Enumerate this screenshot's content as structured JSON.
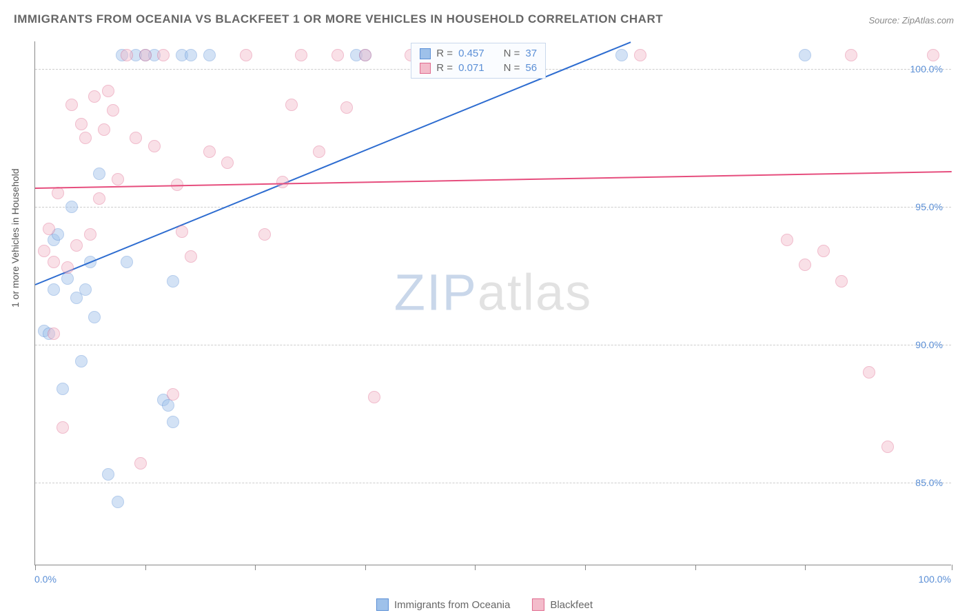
{
  "title": "IMMIGRANTS FROM OCEANIA VS BLACKFEET 1 OR MORE VEHICLES IN HOUSEHOLD CORRELATION CHART",
  "source": "Source: ZipAtlas.com",
  "ylabel": "1 or more Vehicles in Household",
  "watermark": {
    "z": "ZIP",
    "rest": "atlas"
  },
  "chart": {
    "type": "scatter",
    "background_color": "#ffffff",
    "grid_color": "#cccccc",
    "axis_color": "#888888",
    "tick_label_color": "#5B8FD6",
    "xlim": [
      0,
      100
    ],
    "ylim": [
      82,
      101
    ],
    "x_ticks": [
      0,
      12,
      24,
      36,
      48,
      60,
      72,
      84,
      100
    ],
    "x_tick_labels": {
      "0": "0.0%",
      "100": "100.0%"
    },
    "y_gridlines": [
      85,
      90,
      95,
      100
    ],
    "y_tick_labels": {
      "85": "85.0%",
      "90": "90.0%",
      "95": "95.0%",
      "100": "100.0%"
    },
    "point_radius": 9,
    "point_opacity": 0.45,
    "series": [
      {
        "name": "Immigrants from Oceania",
        "fill": "#9ec1ea",
        "stroke": "#5B8FD6",
        "trend_color": "#2d6cd0",
        "R": "0.457",
        "N": "37",
        "trend": {
          "x1": 0,
          "y1": 92.2,
          "x2": 65,
          "y2": 101
        },
        "points": [
          [
            1,
            90.5
          ],
          [
            1.5,
            90.4
          ],
          [
            2,
            93.8
          ],
          [
            2,
            92.0
          ],
          [
            2.5,
            94.0
          ],
          [
            3,
            88.4
          ],
          [
            3.5,
            92.4
          ],
          [
            4,
            95.0
          ],
          [
            4.5,
            91.7
          ],
          [
            5,
            89.4
          ],
          [
            5.5,
            92.0
          ],
          [
            6,
            93.0
          ],
          [
            6.5,
            91.0
          ],
          [
            7,
            96.2
          ],
          [
            8,
            85.3
          ],
          [
            9,
            84.3
          ],
          [
            9.5,
            100.5
          ],
          [
            10,
            93.0
          ],
          [
            11,
            100.5
          ],
          [
            12,
            100.5
          ],
          [
            13,
            100.5
          ],
          [
            14,
            88.0
          ],
          [
            14.5,
            87.8
          ],
          [
            15,
            87.2
          ],
          [
            15,
            92.3
          ],
          [
            16,
            100.5
          ],
          [
            17,
            100.5
          ],
          [
            19,
            100.5
          ],
          [
            35,
            100.5
          ],
          [
            36,
            100.5
          ],
          [
            49,
            100.5
          ],
          [
            49.5,
            100.5
          ],
          [
            64,
            100.5
          ],
          [
            84,
            100.5
          ]
        ]
      },
      {
        "name": "Blackfeet",
        "fill": "#f3bccb",
        "stroke": "#e06b8f",
        "trend_color": "#e64d7d",
        "R": "0.071",
        "N": "56",
        "trend": {
          "x1": 0,
          "y1": 95.7,
          "x2": 100,
          "y2": 96.3
        },
        "points": [
          [
            1,
            93.4
          ],
          [
            1.5,
            94.2
          ],
          [
            2,
            93.0
          ],
          [
            2,
            90.4
          ],
          [
            2.5,
            95.5
          ],
          [
            3,
            87.0
          ],
          [
            3.5,
            92.8
          ],
          [
            4,
            98.7
          ],
          [
            4.5,
            93.6
          ],
          [
            5,
            98.0
          ],
          [
            5.5,
            97.5
          ],
          [
            6,
            94.0
          ],
          [
            6.5,
            99.0
          ],
          [
            7,
            95.3
          ],
          [
            7.5,
            97.8
          ],
          [
            8,
            99.2
          ],
          [
            8.5,
            98.5
          ],
          [
            9,
            96.0
          ],
          [
            10,
            100.5
          ],
          [
            11,
            97.5
          ],
          [
            11.5,
            85.7
          ],
          [
            12,
            100.5
          ],
          [
            13,
            97.2
          ],
          [
            14,
            100.5
          ],
          [
            15,
            88.2
          ],
          [
            15.5,
            95.8
          ],
          [
            16,
            94.1
          ],
          [
            17,
            93.2
          ],
          [
            19,
            97.0
          ],
          [
            21,
            96.6
          ],
          [
            23,
            100.5
          ],
          [
            25,
            94.0
          ],
          [
            27,
            95.9
          ],
          [
            28,
            98.7
          ],
          [
            29,
            100.5
          ],
          [
            31,
            97.0
          ],
          [
            33,
            100.5
          ],
          [
            34,
            98.6
          ],
          [
            36,
            100.5
          ],
          [
            37,
            88.1
          ],
          [
            41,
            100.5
          ],
          [
            45,
            100.5
          ],
          [
            46,
            100.5
          ],
          [
            48,
            100.5
          ],
          [
            66,
            100.5
          ],
          [
            82,
            93.8
          ],
          [
            84,
            92.9
          ],
          [
            86,
            93.4
          ],
          [
            88,
            92.3
          ],
          [
            89,
            100.5
          ],
          [
            91,
            89.0
          ],
          [
            93,
            86.3
          ],
          [
            98,
            100.5
          ]
        ]
      }
    ]
  },
  "stats_box": {
    "R_label": "R =",
    "N_label": "N ="
  }
}
